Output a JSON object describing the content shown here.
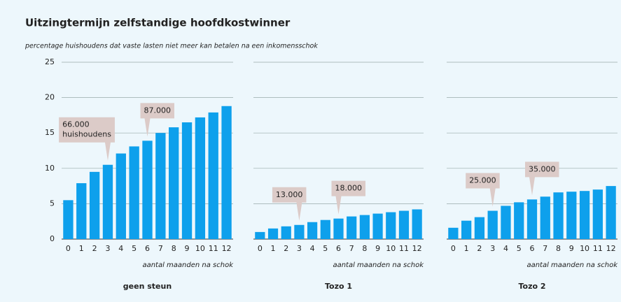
{
  "title": "Uitzingtermijn zelfstandige hoofdkostwinner",
  "subtitle": "percentage huishoudens dat vaste lasten niet meer kan betalen na een inkomensschok",
  "chart_data": [
    {
      "type": "bar",
      "title": "geen steun",
      "xlabel": "aantal maanden na schok",
      "color": "#0ea0ec",
      "categories": [
        "0",
        "1",
        "2",
        "3",
        "4",
        "5",
        "6",
        "7",
        "8",
        "9",
        "10",
        "11",
        "12"
      ],
      "values": [
        5.5,
        7.9,
        9.5,
        10.5,
        12.1,
        13.1,
        13.9,
        15.0,
        15.8,
        16.5,
        17.2,
        17.9,
        18.8
      ],
      "ylim": [
        0,
        25
      ],
      "yticks": [
        0,
        5,
        10,
        15,
        20,
        25
      ],
      "ytick_labels": true,
      "grid": true,
      "annotations": [
        {
          "lines": [
            "66.000",
            "huishoudens"
          ],
          "category": "3"
        },
        {
          "lines": [
            "87.000"
          ],
          "category": "6"
        }
      ]
    },
    {
      "type": "bar",
      "title": "Tozo 1",
      "xlabel": "aantal maanden na schok",
      "color": "#0ea0ec",
      "categories": [
        "0",
        "1",
        "2",
        "3",
        "4",
        "5",
        "6",
        "7",
        "8",
        "9",
        "10",
        "11",
        "12"
      ],
      "values": [
        1.0,
        1.5,
        1.8,
        2.0,
        2.4,
        2.7,
        2.9,
        3.2,
        3.4,
        3.6,
        3.8,
        4.0,
        4.2
      ],
      "ylim": [
        0,
        25
      ],
      "yticks": [
        0,
        5,
        10,
        15,
        20,
        25
      ],
      "ytick_labels": false,
      "grid": true,
      "annotations": [
        {
          "lines": [
            "13.000"
          ],
          "category": "3"
        },
        {
          "lines": [
            "18.000"
          ],
          "category": "6"
        }
      ]
    },
    {
      "type": "bar",
      "title": "Tozo 2",
      "xlabel": "aantal maanden na schok",
      "color": "#0ea0ec",
      "categories": [
        "0",
        "1",
        "2",
        "3",
        "4",
        "5",
        "6",
        "7",
        "8",
        "9",
        "10",
        "11",
        "12"
      ],
      "values": [
        1.6,
        2.6,
        3.1,
        4.0,
        4.7,
        5.2,
        5.6,
        6.0,
        6.6,
        6.7,
        6.8,
        7.0,
        7.5
      ],
      "ylim": [
        0,
        25
      ],
      "yticks": [
        0,
        5,
        10,
        15,
        20,
        25
      ],
      "ytick_labels": false,
      "grid": true,
      "annotations": [
        {
          "lines": [
            "25.000"
          ],
          "category": "3"
        },
        {
          "lines": [
            "35.000"
          ],
          "category": "6"
        }
      ]
    }
  ]
}
